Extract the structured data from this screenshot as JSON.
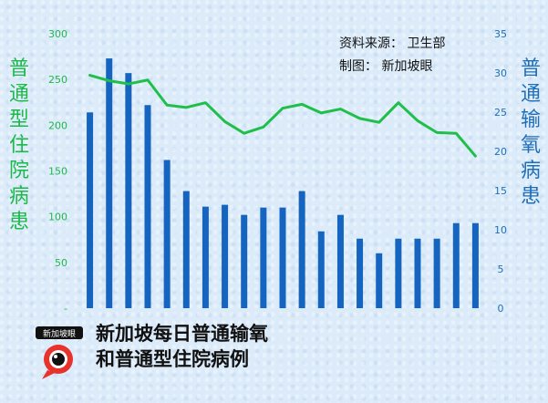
{
  "texts": {
    "left_axis_title": "普通型住院病患",
    "right_axis_title": "普通输氧病患",
    "source": "资料来源： 卫生部",
    "credit": "制图： 新加坡眼",
    "title_line1": "新加坡每日普通输氧",
    "title_line2": "和普通型住院病例",
    "logo_text": "新加坡眼"
  },
  "colors": {
    "bars": "#1565c0",
    "line": "#1fbf4a",
    "left_axis": "#1db84a",
    "right_axis": "#1f6fb8"
  },
  "chart_data": {
    "type": "bar",
    "series": [
      {
        "name": "普通型住院病患",
        "type": "bar",
        "axis": "left",
        "values": [
          214,
          273,
          257,
          222,
          162,
          128,
          111,
          113,
          102,
          110,
          110,
          128,
          84,
          102,
          76,
          60,
          76,
          76,
          76,
          93,
          93
        ]
      },
      {
        "name": "普通输氧病患",
        "type": "line",
        "axis": "right",
        "values": [
          29.7,
          29.0,
          28.6,
          29.1,
          25.9,
          25.6,
          26.2,
          23.8,
          22.3,
          23.1,
          25.5,
          26.0,
          24.9,
          25.4,
          24.2,
          23.7,
          26.2,
          23.9,
          22.4,
          22.3,
          19.4
        ]
      }
    ],
    "y_left": {
      "min": 0,
      "max": 300,
      "ticks": [
        "-",
        "50",
        "100",
        "150",
        "200",
        "250",
        "300"
      ]
    },
    "y_right": {
      "min": 0,
      "max": 35,
      "ticks": [
        "0",
        "5",
        "10",
        "15",
        "20",
        "25",
        "30",
        "35"
      ]
    },
    "grid": false,
    "legend": "none"
  }
}
